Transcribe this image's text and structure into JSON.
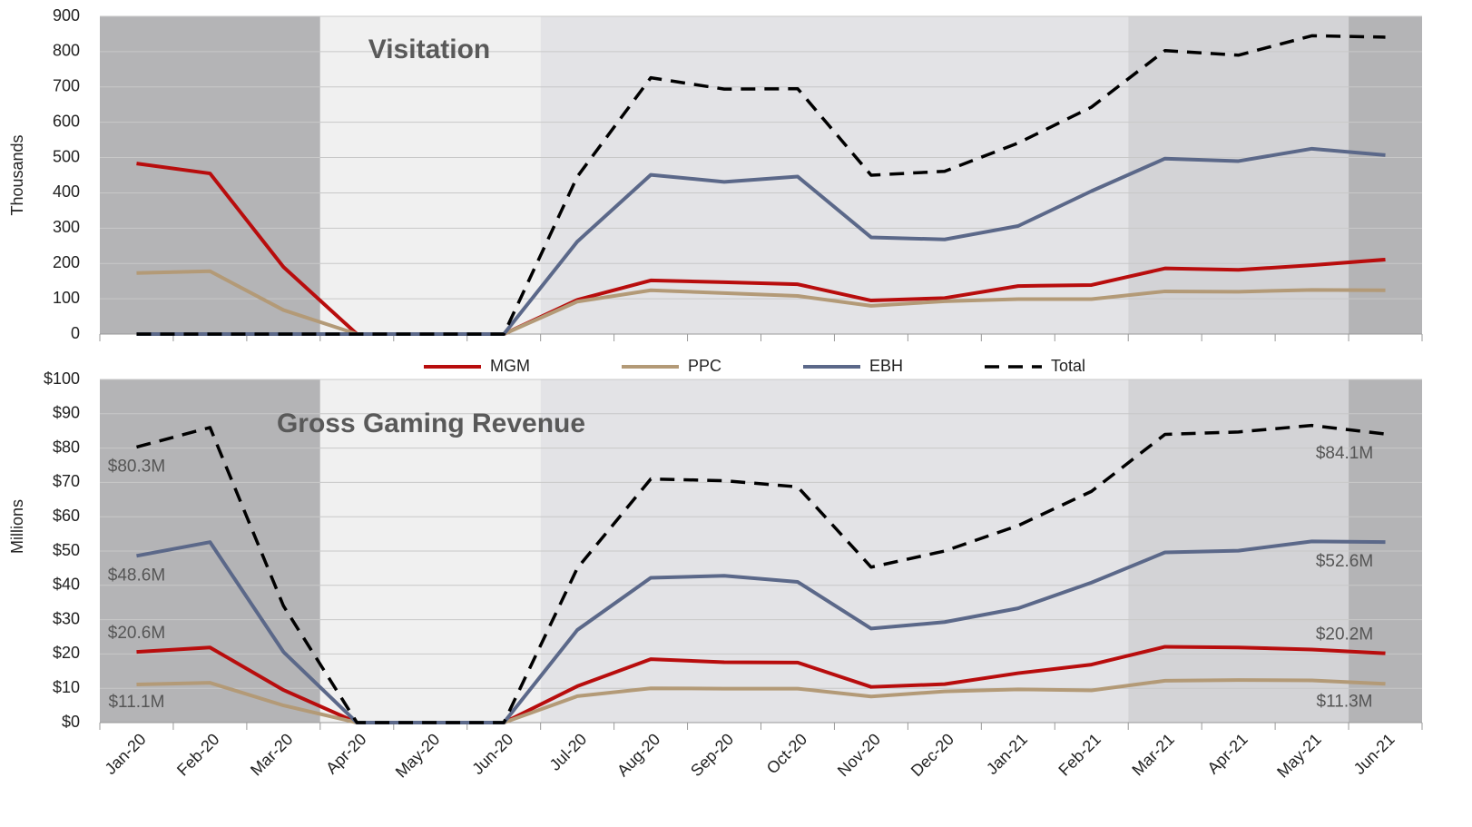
{
  "chart_data": [
    {
      "type": "line",
      "title": "Visitation",
      "y_label": "Thousands",
      "ylim": [
        0,
        900
      ],
      "yticks": [
        0,
        100,
        200,
        300,
        400,
        500,
        600,
        700,
        800,
        900
      ],
      "grid": true,
      "series": [
        {
          "name": "MGM",
          "color": "#b80d0d",
          "values": [
            483,
            455,
            190,
            0,
            0,
            0,
            97,
            152,
            147,
            141,
            95,
            102,
            136,
            139,
            186,
            182,
            195,
            211
          ]
        },
        {
          "name": "PPC",
          "color": "#b39a77",
          "values": [
            173,
            178,
            68,
            0,
            0,
            0,
            92,
            124,
            116,
            108,
            80,
            93,
            99,
            99,
            121,
            120,
            125,
            124
          ]
        },
        {
          "name": "EBH",
          "color": "#5b6889",
          "values": [
            0,
            0,
            0,
            0,
            0,
            0,
            262,
            451,
            431,
            446,
            274,
            268,
            306,
            405,
            497,
            490,
            525,
            507
          ]
        },
        {
          "name": "Total",
          "color": "#000000",
          "dashed": true,
          "values": [
            0,
            0,
            0,
            0,
            0,
            0,
            446,
            726,
            694,
            695,
            450,
            461,
            541,
            643,
            803,
            790,
            845,
            841
          ]
        }
      ]
    },
    {
      "type": "line",
      "title": "Gross Gaming Revenue",
      "y_label": "Millions",
      "categories": [
        "Jan-20",
        "Feb-20",
        "Mar-20",
        "Apr-20",
        "May-20",
        "Jun-20",
        "Jul-20",
        "Aug-20",
        "Sep-20",
        "Oct-20",
        "Nov-20",
        "Dec-20",
        "Jan-21",
        "Feb-21",
        "Mar-21",
        "Apr-21",
        "May-21",
        "Jun-21"
      ],
      "ylim": [
        0,
        100
      ],
      "yticks": [
        {
          "value": 0,
          "label": "$0"
        },
        {
          "value": 10,
          "label": "$10"
        },
        {
          "value": 20,
          "label": "$20"
        },
        {
          "value": 30,
          "label": "$30"
        },
        {
          "value": 40,
          "label": "$40"
        },
        {
          "value": 50,
          "label": "$50"
        },
        {
          "value": 60,
          "label": "$60"
        },
        {
          "value": 70,
          "label": "$70"
        },
        {
          "value": 80,
          "label": "$80"
        },
        {
          "value": 90,
          "label": "$90"
        },
        {
          "value": 100,
          "label": "$100"
        }
      ],
      "grid": true,
      "series": [
        {
          "color": "#b80d0d",
          "values": [
            20.6,
            21.9,
            9.5,
            0,
            0,
            0,
            10.6,
            18.5,
            17.6,
            17.5,
            10.4,
            11.2,
            14.4,
            16.9,
            22.1,
            21.9,
            21.3,
            20.2
          ],
          "value_labels": [
            "$20.6M",
            null,
            null,
            null,
            null,
            null,
            null,
            null,
            null,
            null,
            null,
            null,
            null,
            null,
            null,
            null,
            null,
            "$20.2M"
          ]
        },
        {
          "color": "#b39a77",
          "values": [
            11.1,
            11.6,
            5,
            0,
            0,
            0,
            7.7,
            10,
            9.9,
            9.9,
            7.6,
            9.1,
            9.7,
            9.4,
            12.2,
            12.4,
            12.3,
            11.3
          ],
          "value_labels": [
            "$11.1M",
            null,
            null,
            null,
            null,
            null,
            null,
            null,
            null,
            null,
            null,
            null,
            null,
            null,
            null,
            null,
            null,
            "$11.3M"
          ]
        },
        {
          "color": "#5b6889",
          "values": [
            48.6,
            52.6,
            20.6,
            0,
            0,
            0,
            27,
            42.2,
            42.8,
            41,
            27.4,
            29.3,
            33.3,
            40.8,
            49.6,
            50.1,
            52.8,
            52.6
          ],
          "value_labels": [
            "$48.6M",
            null,
            null,
            null,
            null,
            null,
            null,
            null,
            null,
            null,
            null,
            null,
            null,
            null,
            null,
            null,
            null,
            "$52.6M"
          ]
        },
        {
          "color": "#000000",
          "dashed": true,
          "values": [
            80.3,
            86,
            34,
            0,
            0,
            0,
            45,
            71,
            70.5,
            68.7,
            45.3,
            50,
            57.4,
            67.4,
            84,
            84.7,
            86.6,
            84.1
          ],
          "value_labels": [
            "$80.3M",
            null,
            null,
            null,
            null,
            null,
            null,
            null,
            null,
            null,
            null,
            null,
            null,
            null,
            null,
            null,
            null,
            "$84.1M"
          ]
        }
      ]
    }
  ]
}
